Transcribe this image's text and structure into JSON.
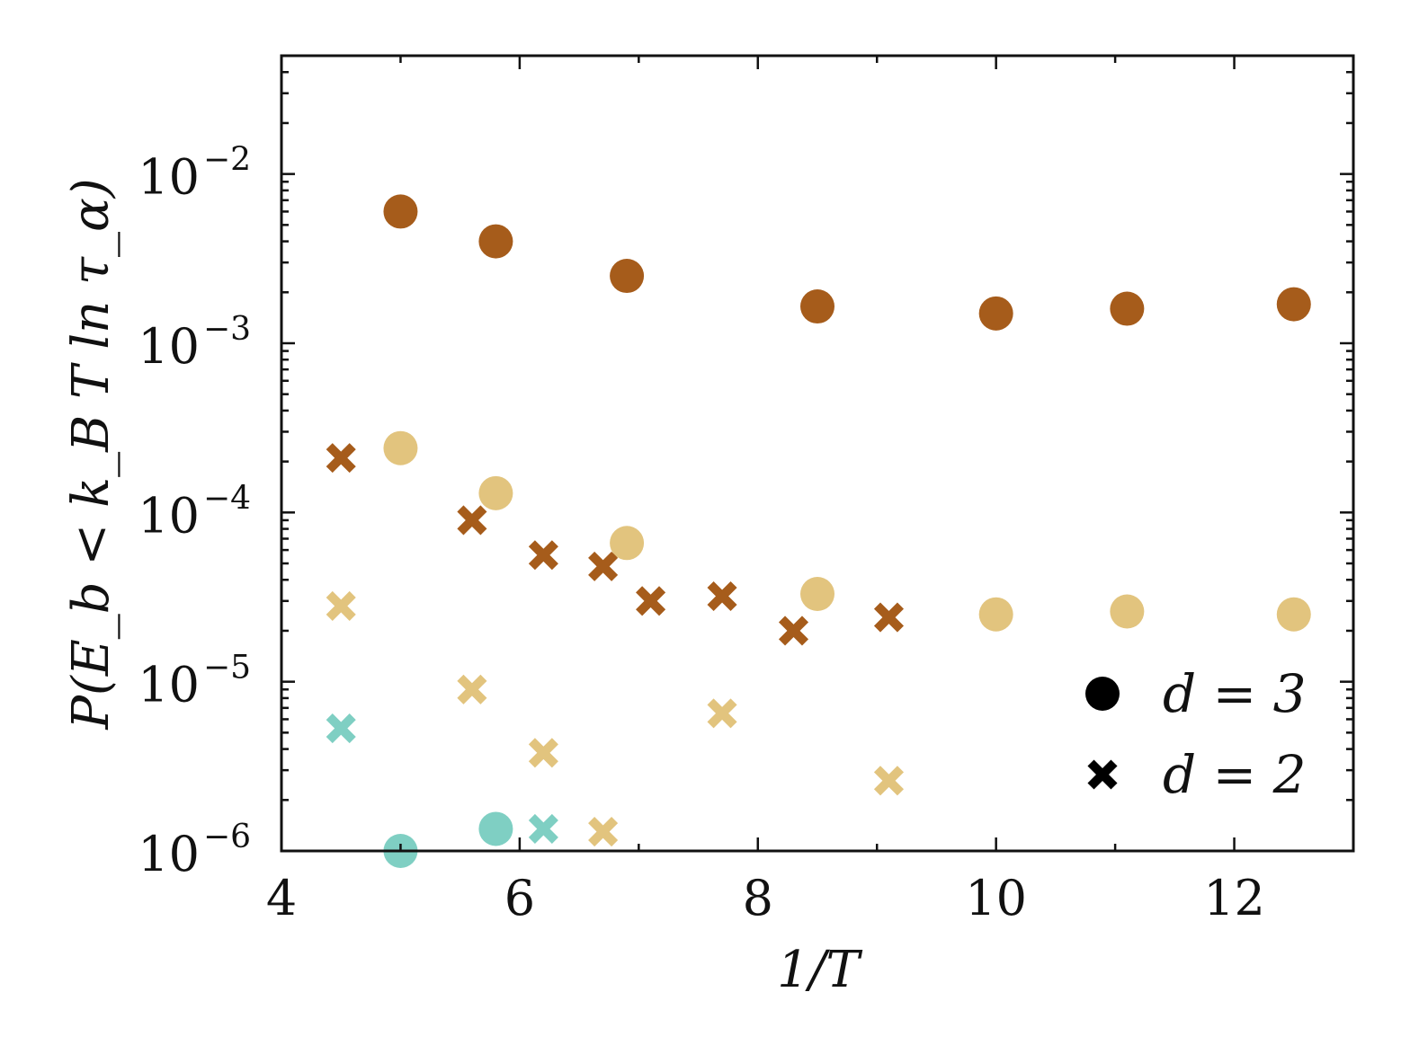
{
  "chart_data": {
    "type": "scatter",
    "xlabel": "1/T",
    "ylabel": "P(E_b < k_B T ln τ_α)",
    "xlim": [
      4,
      13
    ],
    "ylim": [
      1e-06,
      0.05
    ],
    "yscale": "log",
    "x_ticks": [
      "4",
      "6",
      "8",
      "10",
      "12"
    ],
    "y_ticks": [
      {
        "base": "10",
        "exp": "−6",
        "value": 1e-06
      },
      {
        "base": "10",
        "exp": "−5",
        "value": 1e-05
      },
      {
        "base": "10",
        "exp": "−4",
        "value": 0.0001
      },
      {
        "base": "10",
        "exp": "−3",
        "value": 0.001
      },
      {
        "base": "10",
        "exp": "−2",
        "value": 0.01
      }
    ],
    "grid": false,
    "legend_position": "bottom-right",
    "legend": [
      {
        "marker": "circle",
        "label": "d = 3"
      },
      {
        "marker": "cross",
        "label": "d = 2"
      }
    ],
    "colors": {
      "dark_brown": "#a65c1b",
      "light_tan": "#e2c47e",
      "teal": "#7fcfc3",
      "legend_marker": "#000000"
    },
    "series": [
      {
        "marker": "circle",
        "color": "#a65c1b",
        "x": [
          5.0,
          5.8,
          6.9,
          8.5,
          10.0,
          11.1,
          12.5
        ],
        "y": [
          0.006,
          0.004,
          0.0025,
          0.00165,
          0.0015,
          0.0016,
          0.0017
        ]
      },
      {
        "marker": "circle",
        "color": "#e2c47e",
        "x": [
          5.0,
          5.8,
          6.9,
          8.5,
          10.0,
          11.1,
          12.5
        ],
        "y": [
          0.00024,
          0.00013,
          6.6e-05,
          3.3e-05,
          2.5e-05,
          2.6e-05,
          2.5e-05
        ]
      },
      {
        "marker": "circle",
        "color": "#7fcfc3",
        "x": [
          5.0,
          5.8
        ],
        "y": [
          1e-06,
          1.35e-06
        ]
      },
      {
        "marker": "cross",
        "color": "#a65c1b",
        "x": [
          4.5,
          5.6,
          6.2,
          6.7,
          7.1,
          7.7,
          8.3,
          9.1
        ],
        "y": [
          0.00021,
          9e-05,
          5.6e-05,
          4.8e-05,
          3e-05,
          3.2e-05,
          2e-05,
          2.4e-05
        ]
      },
      {
        "marker": "cross",
        "color": "#e2c47e",
        "x": [
          4.5,
          5.6,
          6.2,
          6.7,
          7.7,
          9.1
        ],
        "y": [
          2.8e-05,
          9e-06,
          3.8e-06,
          1.3e-06,
          6.5e-06,
          2.6e-06
        ]
      },
      {
        "marker": "cross",
        "color": "#7fcfc3",
        "x": [
          4.5,
          6.2
        ],
        "y": [
          5.3e-06,
          1.35e-06
        ]
      }
    ]
  }
}
